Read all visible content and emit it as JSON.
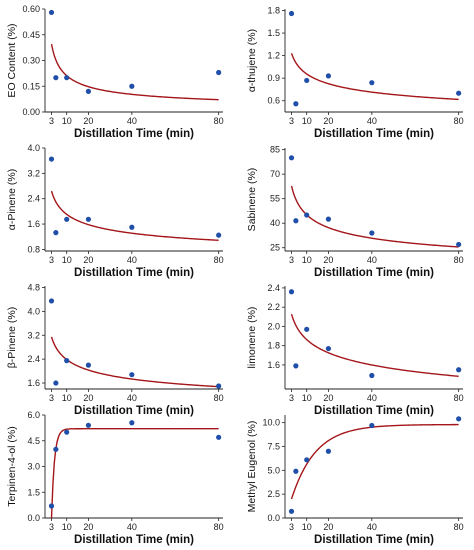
{
  "colors": {
    "point": "#1f4fa8",
    "fit": "#a4161a",
    "axis": "#222222"
  },
  "chart_data": [
    {
      "type": "scatter",
      "xlabel": "Distillation Time (min)",
      "ylabel": "EO Content (%)",
      "xlim": [
        0,
        82
      ],
      "ylim": [
        0,
        0.6
      ],
      "xticks": [
        3,
        10,
        20,
        40,
        80
      ],
      "yticks": [
        0.0,
        0.15,
        0.3,
        0.45,
        0.6
      ],
      "ytick_labels": [
        "0.00",
        "0.15",
        "0.30",
        "0.45",
        "0.60"
      ],
      "points": [
        [
          3,
          0.58
        ],
        [
          5,
          0.2
        ],
        [
          10,
          0.2
        ],
        [
          20,
          0.12
        ],
        [
          40,
          0.15
        ],
        [
          80,
          0.23
        ]
      ],
      "fit": {
        "model": "power",
        "a": 0.7,
        "b": 0.52,
        "x": [
          3,
          80
        ]
      }
    },
    {
      "type": "scatter",
      "xlabel": "Distillation Time (min)",
      "ylabel": "α-thujene (%)",
      "xlim": [
        0,
        82
      ],
      "ylim": [
        0.45,
        1.82
      ],
      "xticks": [
        3,
        10,
        20,
        40,
        80
      ],
      "yticks": [
        0.6,
        0.9,
        1.2,
        1.5,
        1.8
      ],
      "ytick_labels": [
        "0.6",
        "0.9",
        "1.2",
        "1.5",
        "1.8"
      ],
      "points": [
        [
          3,
          1.76
        ],
        [
          5,
          0.56
        ],
        [
          10,
          0.87
        ],
        [
          20,
          0.93
        ],
        [
          40,
          0.84
        ],
        [
          80,
          0.7
        ]
      ],
      "fit": {
        "model": "power",
        "a": 1.55,
        "b": 0.21,
        "x": [
          3,
          80
        ]
      }
    },
    {
      "type": "scatter",
      "xlabel": "Distillation Time (min)",
      "ylabel": "α-Pinene (%)",
      "xlim": [
        0,
        82
      ],
      "ylim": [
        0.75,
        4.0
      ],
      "xticks": [
        3,
        10,
        20,
        40,
        80
      ],
      "yticks": [
        0.8,
        1.6,
        2.4,
        3.2,
        4.0
      ],
      "ytick_labels": [
        "0.8",
        "1.6",
        "2.4",
        "3.2",
        "4.0"
      ],
      "points": [
        [
          3,
          3.65
        ],
        [
          5,
          1.33
        ],
        [
          10,
          1.75
        ],
        [
          20,
          1.75
        ],
        [
          40,
          1.5
        ],
        [
          80,
          1.25
        ]
      ],
      "fit": {
        "model": "power",
        "a": 3.55,
        "b": 0.27,
        "x": [
          3,
          80
        ]
      }
    },
    {
      "type": "scatter",
      "xlabel": "Distillation Time (min)",
      "ylabel": "Sabinene (%)",
      "xlim": [
        0,
        82
      ],
      "ylim": [
        23,
        86
      ],
      "xticks": [
        3,
        10,
        20,
        40,
        80
      ],
      "yticks": [
        25,
        40,
        55,
        70,
        85
      ],
      "ytick_labels": [
        "25",
        "40",
        "55",
        "70",
        "85"
      ],
      "points": [
        [
          3,
          80
        ],
        [
          5,
          41.5
        ],
        [
          10,
          45
        ],
        [
          20,
          42.5
        ],
        [
          40,
          34
        ],
        [
          80,
          27
        ]
      ],
      "fit": {
        "model": "power",
        "a": 85,
        "b": 0.275,
        "x": [
          3,
          80
        ]
      }
    },
    {
      "type": "scatter",
      "xlabel": "Distillation Time (min)",
      "ylabel": "β-Pinene (%)",
      "xlim": [
        0,
        82
      ],
      "ylim": [
        1.4,
        4.85
      ],
      "xticks": [
        3,
        10,
        20,
        40,
        80
      ],
      "yticks": [
        1.6,
        2.4,
        3.2,
        4.0,
        4.8
      ],
      "ytick_labels": [
        "1.6",
        "2.4",
        "3.2",
        "4.0",
        "4.8"
      ],
      "points": [
        [
          3,
          4.35
        ],
        [
          5,
          1.6
        ],
        [
          10,
          2.35
        ],
        [
          20,
          2.2
        ],
        [
          40,
          1.88
        ],
        [
          80,
          1.5
        ]
      ],
      "fit": {
        "model": "power",
        "a": 4.05,
        "b": 0.23,
        "x": [
          3,
          80
        ]
      }
    },
    {
      "type": "scatter",
      "xlabel": "Distillation Time (min)",
      "ylabel": "limonene (%)",
      "xlim": [
        0,
        82
      ],
      "ylim": [
        1.35,
        2.42
      ],
      "xticks": [
        3,
        10,
        20,
        40,
        80
      ],
      "yticks": [
        1.6,
        1.8,
        2.0,
        2.2,
        2.4
      ],
      "ytick_labels": [
        "1.6",
        "1.8",
        "2.0",
        "2.2",
        "2.4"
      ],
      "points": [
        [
          3,
          2.36
        ],
        [
          5,
          1.59
        ],
        [
          10,
          1.97
        ],
        [
          20,
          1.77
        ],
        [
          40,
          1.49
        ],
        [
          80,
          1.55
        ]
      ],
      "fit": {
        "model": "power",
        "a": 2.4,
        "b": 0.11,
        "x": [
          3,
          80
        ]
      }
    },
    {
      "type": "scatter",
      "xlabel": "Distillation Time (min)",
      "ylabel": "Terpinen-4-ol (%)",
      "xlim": [
        0,
        82
      ],
      "ylim": [
        0,
        6.0
      ],
      "xticks": [
        3,
        10,
        20,
        40,
        80
      ],
      "yticks": [
        0.0,
        1.5,
        3.0,
        4.5,
        6.0
      ],
      "ytick_labels": [
        "0.0",
        "1.5",
        "3.0",
        "4.5",
        "6.0"
      ],
      "points": [
        [
          3,
          0.7
        ],
        [
          5,
          4.0
        ],
        [
          10,
          5.0
        ],
        [
          20,
          5.4
        ],
        [
          40,
          5.55
        ],
        [
          80,
          4.7
        ]
      ],
      "fit": {
        "model": "exp_rise",
        "asymptote": 5.2,
        "x0": 3,
        "rate": 0.75,
        "x": [
          3,
          80
        ]
      }
    },
    {
      "type": "scatter",
      "xlabel": "Distillation Time (min)",
      "ylabel": "Methyl Eugenol (%)",
      "xlim": [
        0,
        82
      ],
      "ylim": [
        0,
        10.8
      ],
      "xticks": [
        3,
        10,
        20,
        40,
        80
      ],
      "yticks": [
        0.0,
        2.5,
        5.0,
        7.5,
        10.0
      ],
      "ytick_labels": [
        "0.0",
        "2.5",
        "5.0",
        "7.5",
        "10.0"
      ],
      "points": [
        [
          3,
          0.7
        ],
        [
          5,
          4.9
        ],
        [
          10,
          6.1
        ],
        [
          20,
          7.0
        ],
        [
          40,
          9.7
        ],
        [
          80,
          10.4
        ]
      ],
      "fit": {
        "model": "exp_rise",
        "asymptote": 9.8,
        "start": 2.0,
        "x0": 3,
        "rate": 0.09,
        "x": [
          3,
          80
        ]
      }
    }
  ]
}
